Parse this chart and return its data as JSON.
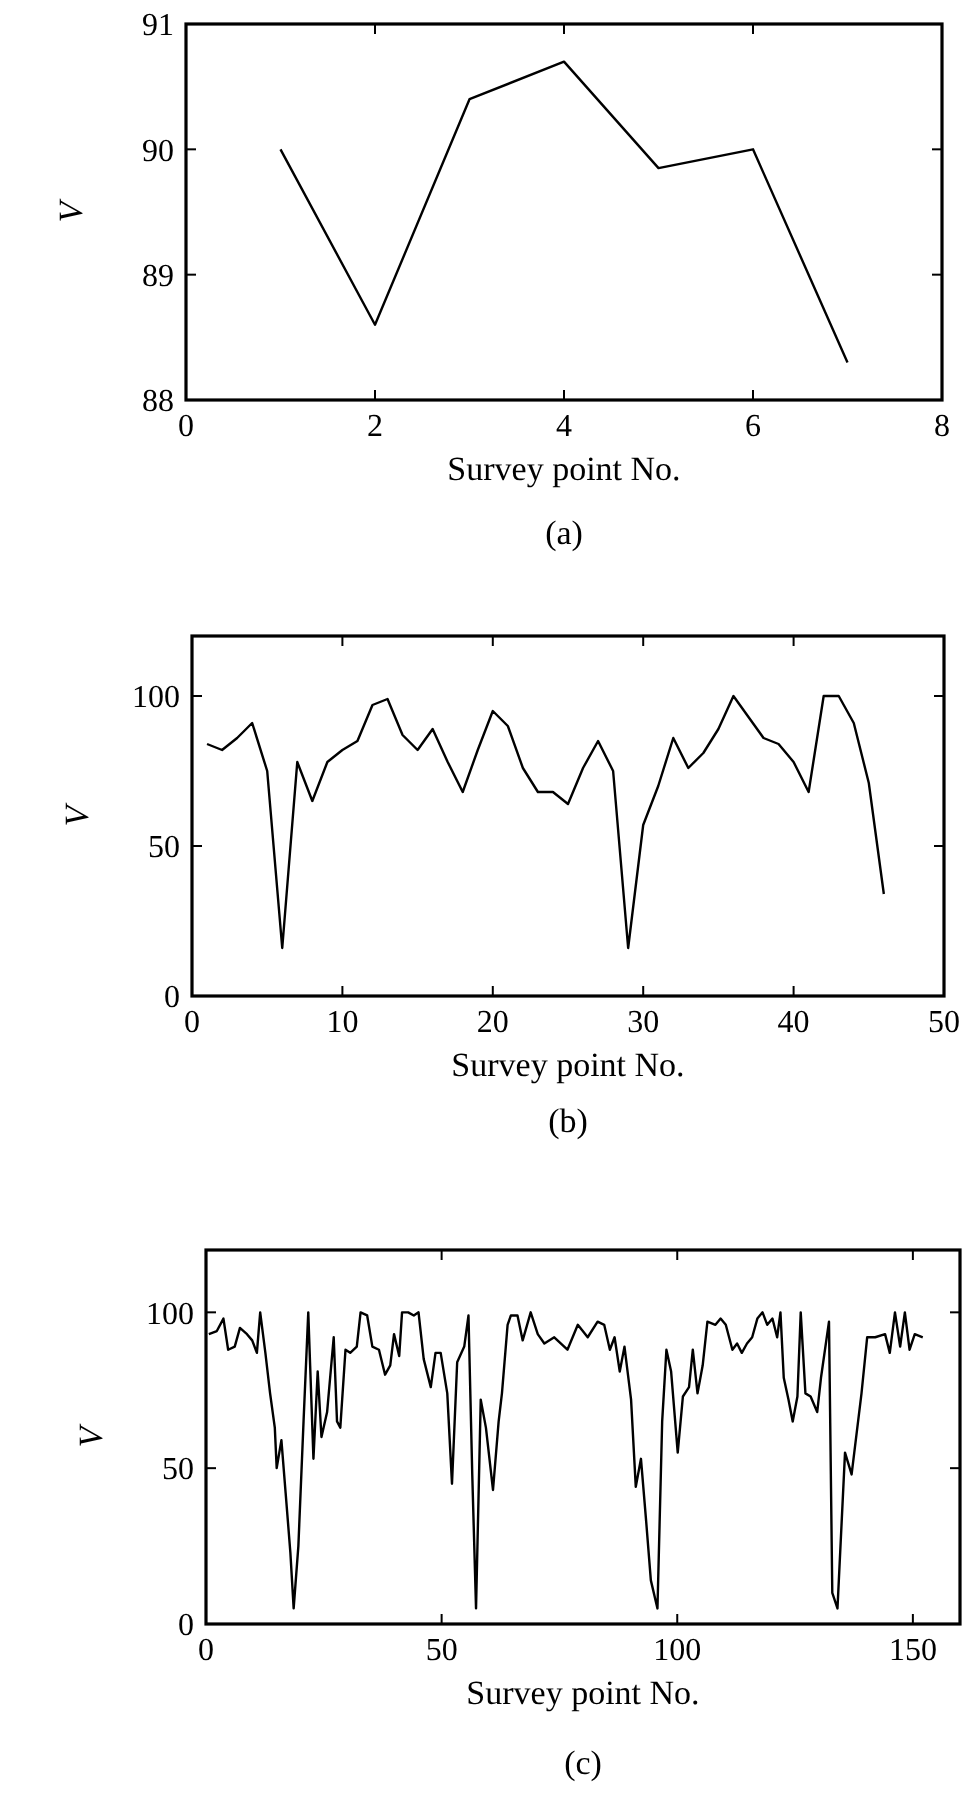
{
  "chart_data": [
    {
      "type": "line",
      "xlabel": "Survey point No.",
      "ylabel": "V",
      "annotations": [
        "(a)"
      ],
      "xlim": [
        0,
        8
      ],
      "xticks": [
        0,
        2,
        4,
        6,
        8
      ],
      "ylim": [
        88,
        91
      ],
      "yticks": [
        88,
        89,
        90,
        91
      ],
      "grid": false,
      "line_style": "solid",
      "series": [
        {
          "color": "#000000",
          "x": [
            1,
            2,
            3,
            4,
            5,
            6,
            7
          ],
          "values": [
            90.0,
            88.6,
            90.4,
            90.7,
            89.85,
            90.0,
            88.3
          ]
        }
      ]
    },
    {
      "type": "line",
      "xlabel": "Survey point No.",
      "ylabel": "V",
      "annotations": [
        "(b)"
      ],
      "xlim": [
        0,
        50
      ],
      "xticks": [
        0,
        10,
        20,
        30,
        40,
        50
      ],
      "ylim": [
        0,
        120
      ],
      "yticks": [
        0,
        50,
        100
      ],
      "grid": false,
      "line_style": "solid",
      "series": [
        {
          "color": "#000000",
          "x": [
            1,
            2,
            3,
            4,
            5,
            6,
            7,
            8,
            9,
            10,
            11,
            12,
            13,
            14,
            15,
            16,
            17,
            18,
            19,
            20,
            21,
            22,
            23,
            24,
            25,
            26,
            27,
            28,
            29,
            30,
            31,
            32,
            33,
            34,
            35,
            36,
            37,
            38,
            39,
            40,
            41,
            42,
            43,
            44,
            45,
            46
          ],
          "values": [
            84,
            82,
            86,
            91,
            75,
            16,
            78,
            65,
            78,
            82,
            85,
            97,
            99,
            87,
            82,
            89,
            78,
            68,
            82,
            95,
            90,
            76,
            68,
            68,
            64,
            76,
            85,
            75,
            16,
            57,
            70,
            86,
            76,
            81,
            89,
            100,
            93,
            86,
            84,
            78,
            68,
            100,
            100,
            91,
            71,
            34
          ]
        }
      ]
    },
    {
      "type": "line",
      "xlabel": "Survey point No.",
      "ylabel": "V",
      "annotations": [
        "(c)"
      ],
      "xlim": [
        0,
        160
      ],
      "xticks": [
        0,
        50,
        100,
        150
      ],
      "ylim": [
        0,
        120
      ],
      "yticks": [
        0,
        50,
        100
      ],
      "grid": false,
      "line_style": "solid",
      "series": [
        {
          "color": "#000000",
          "x": [
            0.6,
            2.3,
            3.7,
            4.7,
            6.1,
            7.2,
            8.7,
            9.8,
            10.8,
            11.5,
            12.6,
            13.6,
            14.6,
            15,
            16,
            16.9,
            17.9,
            18.6,
            19.6,
            20.7,
            21.7,
            22.8,
            23.7,
            24.5,
            25.7,
            27.1,
            27.8,
            28.5,
            29.6,
            30.6,
            32,
            32.8,
            34.2,
            35.3,
            36.7,
            38,
            39.1,
            39.9,
            41,
            41.6,
            42.9,
            44.1,
            45.1,
            46.2,
            47.7,
            48.7,
            49.8,
            51.2,
            52.2,
            53.3,
            54.8,
            55.7,
            56.5,
            57.3,
            58.3,
            59.4,
            60.9,
            62.1,
            62.8,
            64,
            64.7,
            66.1,
            67.2,
            68.9,
            70.4,
            71.8,
            73.9,
            76.7,
            78.9,
            81,
            83.1,
            84.5,
            85.7,
            86.7,
            87.8,
            88.8,
            90.2,
            91.2,
            92.3,
            93.4,
            94.4,
            95.8,
            96.8,
            97.7,
            98.7,
            100.1,
            101.2,
            102.5,
            103.3,
            104.3,
            105.4,
            106.4,
            108.1,
            109.2,
            110.3,
            111.7,
            112.7,
            113.7,
            114.8,
            115.9,
            117,
            118.1,
            119.1,
            120.2,
            121.2,
            121.9,
            122.6,
            123.6,
            124.5,
            125.5,
            126.2,
            127.2,
            128.3,
            129.7,
            130.5,
            132.2,
            132.9,
            134,
            135.6,
            137,
            139.1,
            140.3,
            142,
            144.1,
            145.1,
            146.2,
            147.3,
            148.3,
            149.3,
            150.4,
            152.1
          ],
          "values": [
            93,
            94,
            98,
            88,
            89,
            95,
            93,
            91,
            87,
            100,
            87,
            74,
            63,
            50,
            59,
            42,
            23,
            5,
            25,
            65,
            100,
            53,
            81,
            60,
            68,
            92,
            65,
            63,
            88,
            87,
            89,
            100,
            99,
            89,
            88,
            80,
            83,
            93,
            86,
            100,
            100,
            99,
            100,
            85,
            76,
            87,
            87,
            74,
            45,
            84,
            89,
            99,
            48,
            5,
            72,
            63,
            43,
            65,
            74,
            96,
            99,
            99,
            91,
            100,
            93,
            90,
            92,
            88,
            96,
            92,
            97,
            96,
            88,
            92,
            81,
            89,
            72,
            44,
            53,
            33,
            14,
            5,
            65,
            88,
            81,
            55,
            73,
            76,
            88,
            74,
            83,
            97,
            96,
            98,
            96,
            88,
            90,
            87,
            90,
            92,
            98,
            100,
            96,
            98,
            92,
            100,
            79,
            72,
            65,
            73,
            100,
            74,
            73,
            68,
            79,
            97,
            10,
            5,
            55,
            48,
            74,
            92,
            92,
            93,
            87,
            100,
            89,
            100,
            88,
            93,
            92
          ]
        }
      ]
    }
  ]
}
